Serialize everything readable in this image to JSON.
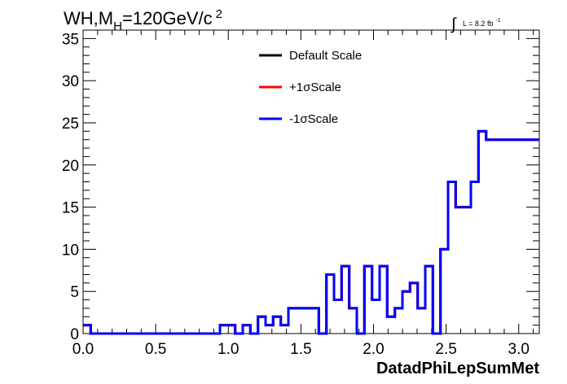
{
  "chart_data": {
    "type": "step",
    "title": {
      "prefix": "WH,M",
      "subscript": "H",
      "middle": "=120GeV/c",
      "superscript": "2"
    },
    "lumi": {
      "integral_symbol": "∫",
      "text": "L = 8.2 fb",
      "superscript": "-1"
    },
    "xlabel": "DatadPhiLepSumMet",
    "ylabel": "",
    "xlim": [
      0,
      3.1416
    ],
    "ylim": [
      0,
      36
    ],
    "x_ticks": [
      {
        "value": 0.0,
        "label": "0.0"
      },
      {
        "value": 0.5,
        "label": "0.5"
      },
      {
        "value": 1.0,
        "label": "1.0"
      },
      {
        "value": 1.5,
        "label": "1.5"
      },
      {
        "value": 2.0,
        "label": "2.0"
      },
      {
        "value": 2.5,
        "label": "2.5"
      },
      {
        "value": 3.0,
        "label": "3.0"
      }
    ],
    "y_ticks": [
      {
        "value": 0,
        "label": "0"
      },
      {
        "value": 5,
        "label": "5"
      },
      {
        "value": 10,
        "label": "10"
      },
      {
        "value": 15,
        "label": "15"
      },
      {
        "value": 20,
        "label": "20"
      },
      {
        "value": 25,
        "label": "25"
      },
      {
        "value": 30,
        "label": "30"
      },
      {
        "value": 35,
        "label": "35"
      }
    ],
    "bins": {
      "n": 60,
      "low": 0,
      "high": 3.1416
    },
    "series": [
      {
        "name": "Default Scale",
        "color": "#000000",
        "values": [
          1,
          0,
          0,
          0,
          0,
          0,
          0,
          0,
          0,
          0,
          0,
          0,
          0,
          0,
          0,
          0,
          0,
          0,
          1,
          1,
          0,
          1,
          0,
          2,
          1,
          2,
          1,
          3,
          3,
          3,
          3,
          0,
          7,
          4,
          8,
          3,
          0,
          8,
          4,
          8,
          2,
          3,
          5,
          6,
          3,
          8,
          0,
          10,
          18,
          15,
          15,
          18,
          24,
          23,
          23,
          23,
          23,
          23,
          23,
          23
        ]
      },
      {
        "name": "+1σScale",
        "color": "#ff0000",
        "values": [
          1,
          0,
          0,
          0,
          0,
          0,
          0,
          0,
          0,
          0,
          0,
          0,
          0,
          0,
          0,
          0,
          0,
          0,
          1,
          1,
          0,
          1,
          0,
          2,
          1,
          2,
          1,
          3,
          3,
          3,
          3,
          0,
          7,
          4,
          8,
          3,
          0,
          8,
          4,
          8,
          2,
          3,
          5,
          6,
          3,
          8,
          0,
          10,
          18,
          15,
          15,
          18,
          24,
          23,
          23,
          23,
          23,
          23,
          23,
          23
        ]
      },
      {
        "name": "-1σScale",
        "color": "#0000ff",
        "values": [
          1,
          0,
          0,
          0,
          0,
          0,
          0,
          0,
          0,
          0,
          0,
          0,
          0,
          0,
          0,
          0,
          0,
          0,
          1,
          1,
          0,
          1,
          0,
          2,
          1,
          2,
          1,
          3,
          3,
          3,
          3,
          0,
          7,
          4,
          8,
          3,
          0,
          8,
          4,
          8,
          2,
          3,
          5,
          6,
          3,
          8,
          0,
          10,
          18,
          15,
          15,
          18,
          24,
          23,
          23,
          23,
          23,
          23,
          23,
          23
        ]
      }
    ],
    "legend": {
      "placement": "top-center"
    }
  }
}
